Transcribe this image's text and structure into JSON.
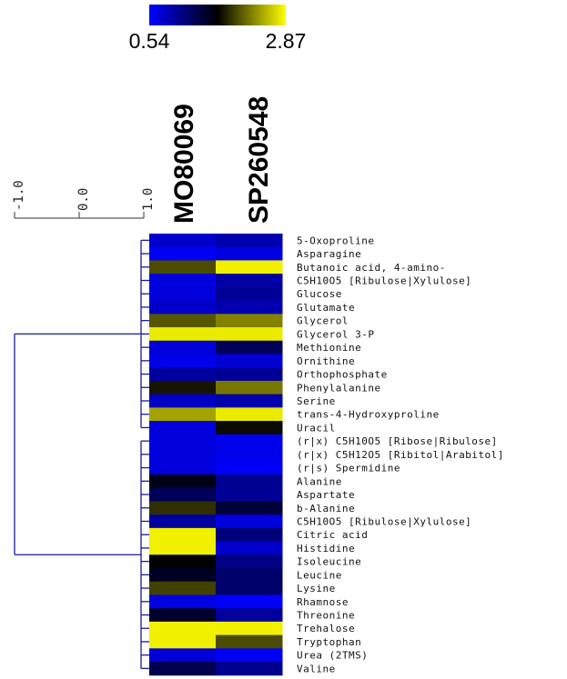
{
  "chart_data": {
    "type": "heatmap",
    "columns": [
      "MO80069",
      "SP260548"
    ],
    "rows": [
      "5-Oxoproline",
      "Asparagine",
      "Butanoic acid, 4-amino-",
      "C5H10O5 [Ribulose|Xylulose]",
      "Glucose",
      "Glutamate",
      "Glycerol",
      "Glycerol 3-P",
      "Methionine",
      "Ornithine",
      "Orthophosphate",
      "Phenylalanine",
      "Serine",
      "trans-4-Hydroxyproline",
      "Uracil",
      "(r|x) C5H10O5 [Ribose|Ribulose]",
      "(r|x) C5H12O5 [Ribitol|Arabitol]",
      "(r|s) Spermidine",
      "Alanine",
      "Aspartate",
      "b-Alanine",
      "C5H10O5 [Ribulose|Xylulose]",
      "Citric acid",
      "Histidine",
      "Isoleucine",
      "Leucine",
      "Lysine",
      "Rhamnose",
      "Threonine",
      "Trehalose",
      "Tryptophan",
      "Urea (2TMS)",
      "Valine"
    ],
    "values": [
      [
        0.78,
        0.9
      ],
      [
        0.6,
        0.68
      ],
      [
        2.05,
        2.8
      ],
      [
        0.7,
        0.95
      ],
      [
        0.7,
        1.02
      ],
      [
        0.8,
        0.9
      ],
      [
        2.1,
        2.3
      ],
      [
        2.78,
        2.78
      ],
      [
        0.72,
        1.3
      ],
      [
        0.64,
        0.74
      ],
      [
        0.97,
        1.02
      ],
      [
        1.8,
        2.25
      ],
      [
        0.82,
        0.92
      ],
      [
        2.45,
        2.78
      ],
      [
        0.7,
        1.75
      ],
      [
        0.7,
        0.63
      ],
      [
        0.7,
        0.64
      ],
      [
        0.7,
        0.58
      ],
      [
        1.6,
        1.05
      ],
      [
        1.3,
        1.02
      ],
      [
        1.92,
        1.45
      ],
      [
        0.98,
        0.7
      ],
      [
        2.8,
        1.15
      ],
      [
        2.8,
        0.78
      ],
      [
        1.7,
        1.1
      ],
      [
        1.55,
        1.22
      ],
      [
        2.0,
        1.22
      ],
      [
        0.68,
        0.56
      ],
      [
        1.5,
        1.0
      ],
      [
        2.8,
        2.8
      ],
      [
        2.8,
        2.05
      ],
      [
        0.72,
        0.6
      ],
      [
        1.35,
        1.05
      ]
    ],
    "color_scale": {
      "min": 0.54,
      "max": 2.87,
      "min_label": "0.54",
      "max_label": "2.87",
      "colors": [
        "#0000ff",
        "#000000",
        "#ffff00"
      ]
    },
    "dendrogram": {
      "color": "#1a1a9c",
      "scale_ticks": [
        "-1.0",
        "0.0",
        "1.0"
      ],
      "clusters": [
        {
          "rows_from": 0,
          "rows_to": 14
        },
        {
          "rows_from": 15,
          "rows_to": 32
        }
      ]
    }
  }
}
